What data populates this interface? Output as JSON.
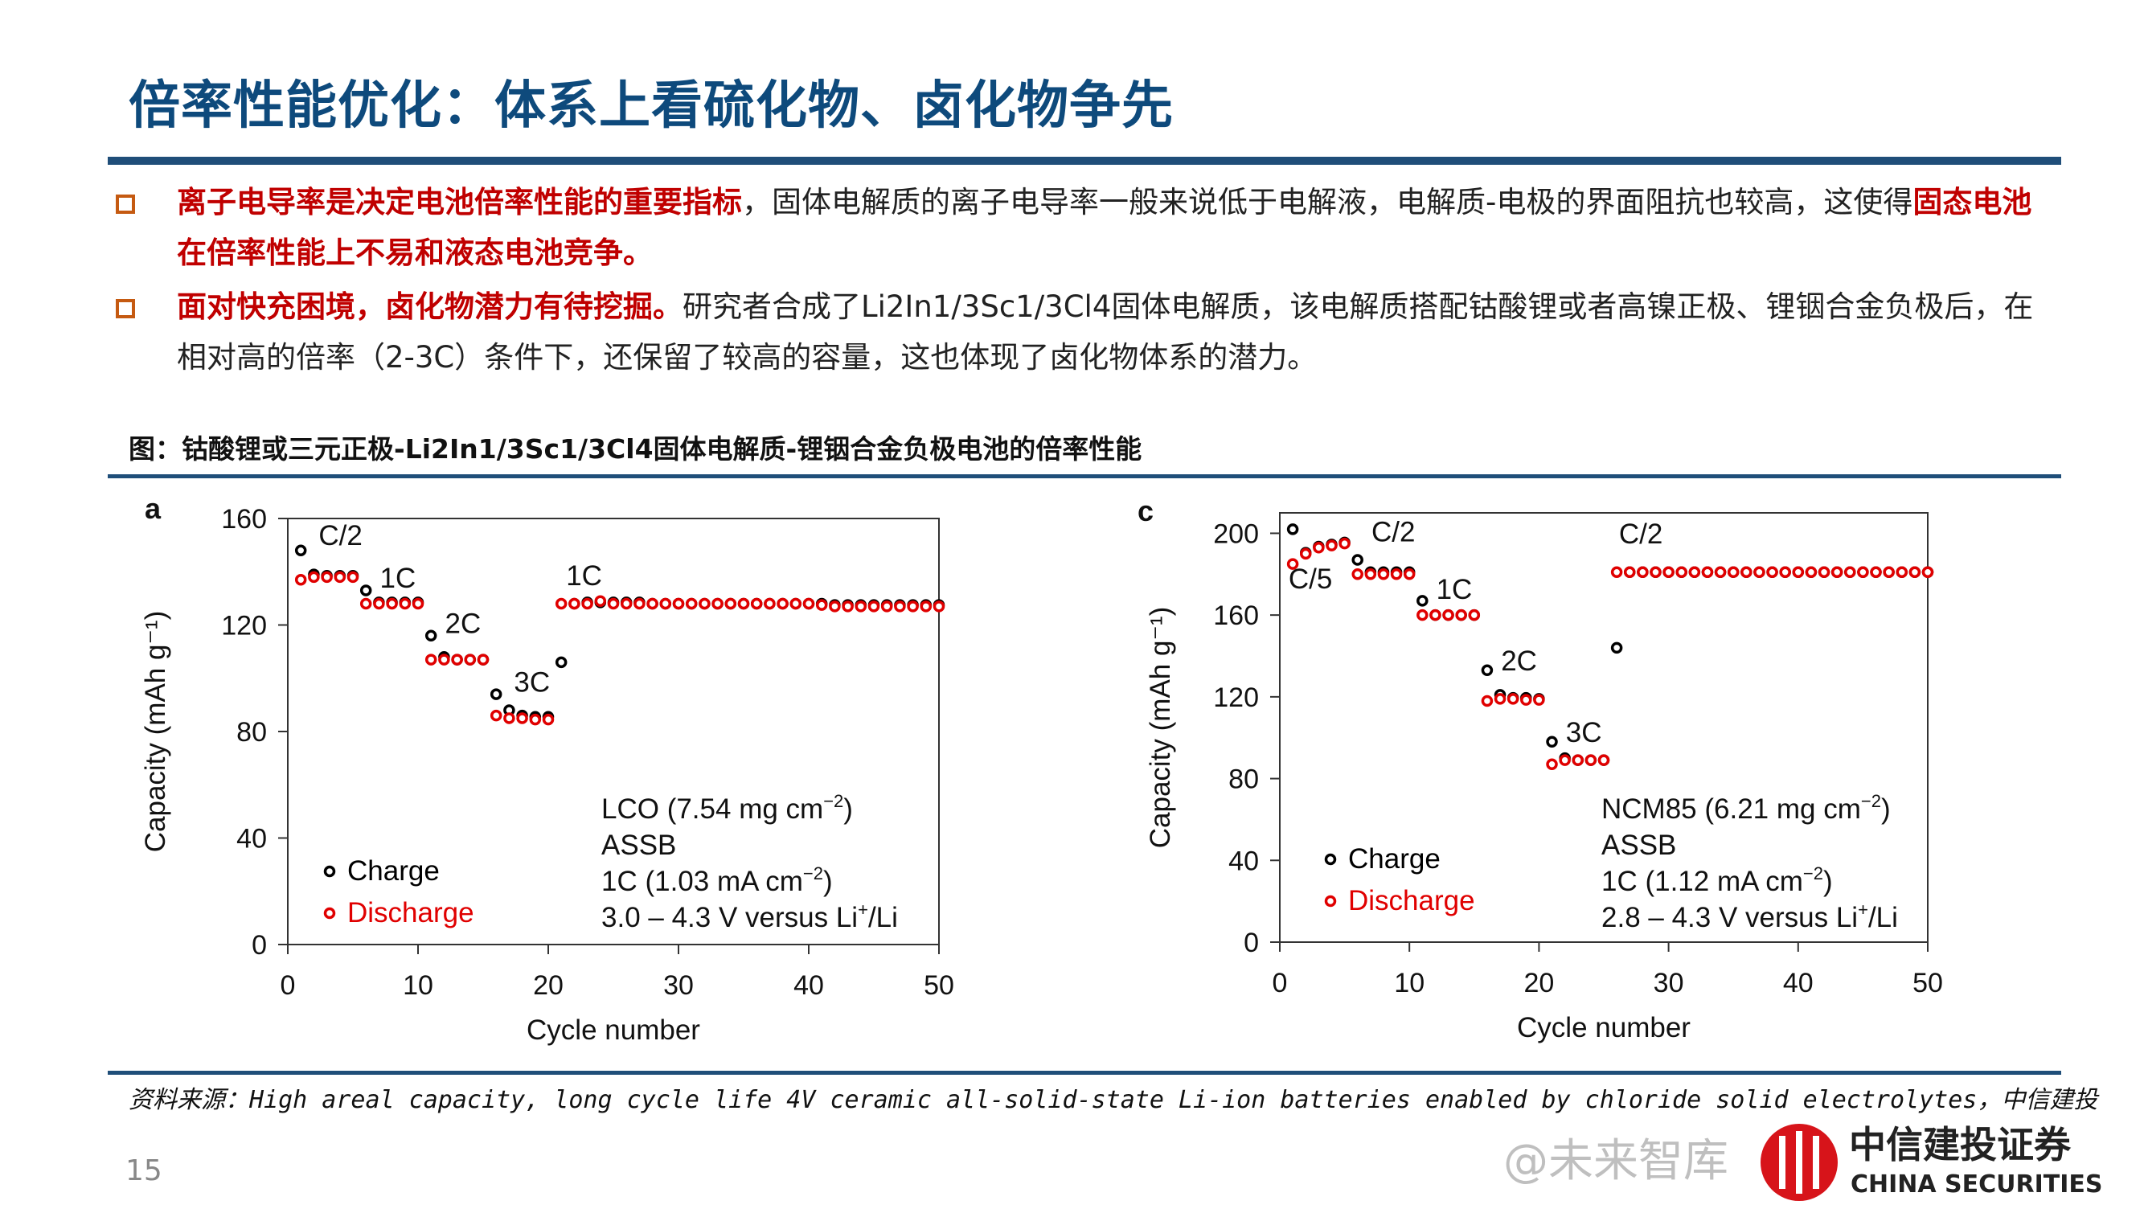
{
  "title": "倍率性能优化：体系上看硫化物、卤化物争先",
  "bullets": [
    {
      "bold": "离子电导率是决定电池倍率性能的重要指标",
      "text": "，固体电解质的离子电导率一般来说低于电解液，电解质-电极的界面阻抗也较高，这使得",
      "bold2": "固态电池在倍率性能上不易和液态电池竞争。"
    },
    {
      "bold": "面对快充困境，卤化物潜力有待挖掘。",
      "text": "研究者合成了Li2In1/3Sc1/3Cl4固体电解质，该电解质搭配钴酸锂或者高镍正极、锂铟合金负极后，在相对高的倍率（2-3C）条件下，还保留了较高的容量，这也体现了卤化物体系的潜力。",
      "bold2": ""
    }
  ],
  "figure_caption": "图：钴酸锂或三元正极-Li2In1/3Sc1/3Cl4固体电解质-锂铟合金负极电池的倍率性能",
  "source": "资料来源：High areal capacity, long cycle life 4V ceramic all-solid-state Li-ion batteries enabled by chloride solid electrolytes，中信建投",
  "page_number": "15",
  "logo": {
    "cn": "中信建投证券",
    "en": "CHINA SECURITIES"
  },
  "watermark": "@未来智库",
  "colors": {
    "title": "#0e4a7c",
    "emphasis": "#c00000",
    "bullet": "#c55a11",
    "rule": "#1f4e79",
    "charge": "#000000",
    "discharge": "#e00000"
  },
  "chart_data": [
    {
      "type": "scatter",
      "panel": "a",
      "xlabel": "Cycle number",
      "ylabel": "Capacity (mAh g⁻¹)",
      "xlim": [
        0,
        50
      ],
      "ylim": [
        0,
        160
      ],
      "xticks": [
        0,
        10,
        20,
        30,
        40,
        50
      ],
      "yticks": [
        0,
        40,
        80,
        120,
        160
      ],
      "grid": false,
      "legend_placement": "bottom-left",
      "x": [
        1,
        2,
        3,
        4,
        5,
        6,
        7,
        8,
        9,
        10,
        11,
        12,
        13,
        14,
        15,
        16,
        17,
        18,
        19,
        20,
        21,
        22,
        23,
        24,
        25,
        26,
        27,
        28,
        29,
        30,
        31,
        32,
        33,
        34,
        35,
        36,
        37,
        38,
        39,
        40,
        41,
        42,
        43,
        44,
        45,
        46,
        47,
        48,
        49,
        50
      ],
      "series": [
        {
          "name": "Charge",
          "values": [
            148,
            139,
            138.5,
            138.5,
            138.5,
            133,
            128.5,
            128.5,
            128.5,
            128.5,
            116,
            108,
            107,
            107,
            107,
            94,
            88,
            86,
            85.5,
            85.5,
            106,
            128,
            128.5,
            128.5,
            128.5,
            128.5,
            128.5,
            128,
            128,
            128,
            128,
            128,
            128,
            128,
            128,
            128,
            128,
            128,
            128,
            128,
            128,
            127.5,
            127.5,
            127.5,
            127.5,
            127.5,
            127.5,
            127.5,
            127.5,
            127.5
          ]
        },
        {
          "name": "Discharge",
          "values": [
            137,
            138,
            138,
            138,
            138,
            128,
            128,
            128,
            128,
            128,
            107,
            107,
            107,
            107,
            107,
            86,
            85,
            85,
            84.5,
            84.5,
            128,
            128,
            128,
            129,
            128,
            128,
            128,
            128,
            128,
            128,
            128,
            128,
            128,
            128,
            128,
            128,
            128,
            128,
            128,
            128,
            127.5,
            127,
            127,
            127,
            127,
            127,
            127,
            127,
            127,
            127
          ]
        }
      ],
      "annotations": [
        {
          "text": "C/2",
          "x": 2,
          "y": 150
        },
        {
          "text": "1C",
          "x": 6.7,
          "y": 134
        },
        {
          "text": "2C",
          "x": 11.7,
          "y": 117
        },
        {
          "text": "3C",
          "x": 17,
          "y": 95
        },
        {
          "text": "1C",
          "x": 21,
          "y": 135
        }
      ],
      "info": [
        {
          "pre": "LCO (7.54 mg cm",
          "sup": "−2",
          "post": ")"
        },
        {
          "pre": "ASSB",
          "sup": "",
          "post": ""
        },
        {
          "pre": "1C (1.03 mA cm",
          "sup": "−2",
          "post": ")"
        },
        {
          "pre": "3.0 – 4.3 V versus Li",
          "sup": "+",
          "post": "/Li"
        }
      ]
    },
    {
      "type": "scatter",
      "panel": "c",
      "xlabel": "Cycle number",
      "ylabel": "Capacity (mAh g⁻¹)",
      "xlim": [
        0,
        50
      ],
      "ylim": [
        0,
        210
      ],
      "xticks": [
        0,
        10,
        20,
        30,
        40,
        50
      ],
      "yticks": [
        0,
        40,
        80,
        120,
        160,
        200
      ],
      "grid": false,
      "legend_placement": "bottom-left",
      "x": [
        1,
        2,
        3,
        4,
        5,
        6,
        7,
        8,
        9,
        10,
        11,
        12,
        13,
        14,
        15,
        16,
        17,
        18,
        19,
        20,
        21,
        22,
        23,
        24,
        25,
        26,
        27,
        28,
        29,
        30,
        31,
        32,
        33,
        34,
        35,
        36,
        37,
        38,
        39,
        40,
        41,
        42,
        43,
        44,
        45,
        46,
        47,
        48,
        49,
        50
      ],
      "series": [
        {
          "name": "Charge",
          "values": [
            202,
            190.5,
            193.5,
            194.5,
            195.5,
            187,
            181,
            181,
            181,
            181,
            167,
            160,
            160,
            160,
            160,
            133,
            121,
            119.5,
            119.5,
            119,
            98,
            90,
            89,
            89,
            89,
            144,
            181,
            181,
            181,
            181,
            181,
            181,
            181,
            181,
            181,
            181,
            181,
            181,
            181,
            181,
            181,
            181,
            181,
            181,
            181,
            181,
            181,
            181,
            181,
            181
          ]
        },
        {
          "name": "Discharge",
          "values": [
            185,
            190,
            193,
            194,
            195,
            180,
            180,
            180,
            180,
            180,
            160,
            160,
            160,
            160,
            160,
            118,
            119,
            119,
            118.5,
            118.5,
            87,
            89,
            89,
            89,
            89,
            181,
            181,
            181,
            181,
            181,
            181,
            181,
            181,
            181,
            181,
            181,
            181,
            181,
            181,
            181,
            181,
            181,
            181,
            181,
            181,
            181,
            181,
            181,
            181,
            181
          ]
        }
      ],
      "annotations": [
        {
          "text": "C/2",
          "x": 6.7,
          "y": 196
        },
        {
          "text": "C/5",
          "x": 0.3,
          "y": 173
        },
        {
          "text": "1C",
          "x": 11.7,
          "y": 168
        },
        {
          "text": "2C",
          "x": 16.7,
          "y": 133
        },
        {
          "text": "3C",
          "x": 21.7,
          "y": 98
        },
        {
          "text": "C/2",
          "x": 25.8,
          "y": 195
        }
      ],
      "info": [
        {
          "pre": "NCM85 (6.21 mg cm",
          "sup": "−2",
          "post": ")"
        },
        {
          "pre": "ASSB",
          "sup": "",
          "post": ""
        },
        {
          "pre": "1C (1.12 mA cm",
          "sup": "−2",
          "post": ")"
        },
        {
          "pre": "2.8 – 4.3 V versus Li",
          "sup": "+",
          "post": "/Li"
        }
      ]
    }
  ]
}
